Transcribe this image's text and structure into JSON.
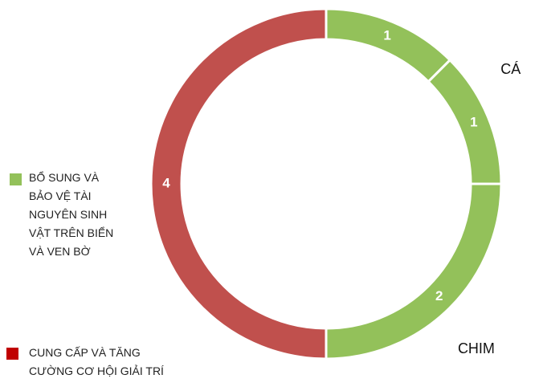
{
  "chart_data": {
    "type": "donut",
    "values": [
      1,
      1,
      2,
      4
    ],
    "colors": [
      "#93c15a",
      "#93c15a",
      "#93c15a",
      "#c0504d"
    ],
    "segment_labels": [
      null,
      "CÁ",
      "CHIM",
      null
    ],
    "legend": [
      {
        "name": "BỔ SUNG VÀ BẢO VỆ TÀI NGUYÊN SINH VẬT TRÊN BIỂN VÀ VEN BỜ",
        "color": "#93c15a"
      },
      {
        "name": "CUNG CẤP VÀ TĂNG CƯỜNG CƠ HỘI GIẢI TRÍ",
        "color": "#c00000"
      }
    ]
  }
}
